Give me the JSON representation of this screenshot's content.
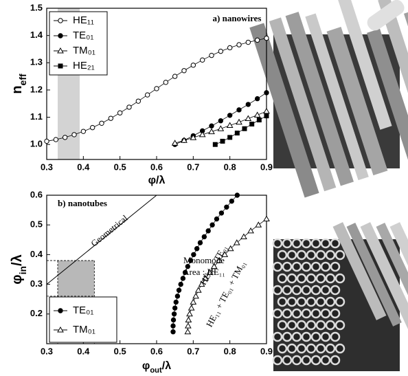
{
  "chart_data": [
    {
      "type": "line",
      "x_label": [
        {
          "text": "φ/λ"
        }
      ],
      "y_label": [
        {
          "text": "n"
        },
        {
          "text": "eff",
          "sub": true
        }
      ],
      "xlim": [
        0.3,
        0.9
      ],
      "xticks": [
        0.3,
        0.4,
        0.5,
        0.6,
        0.7,
        0.8,
        0.9
      ],
      "ylim": [
        0.945,
        1.5
      ],
      "yticks": [
        {
          "value": 1.0,
          "label": "1.0"
        },
        1.1,
        1.2,
        1.3,
        1.4,
        1.5
      ],
      "band": {
        "x": [
          0.33,
          0.39
        ],
        "color": "#d3d3d3"
      },
      "annotations": [
        "a) nanowires"
      ],
      "legend": "top-left",
      "series": [
        {
          "name": "HE₁₁",
          "color": "#000000",
          "marker": "circle-open",
          "x": [
            0.3,
            0.325,
            0.35,
            0.375,
            0.4,
            0.425,
            0.45,
            0.475,
            0.5,
            0.525,
            0.55,
            0.575,
            0.6,
            0.625,
            0.65,
            0.675,
            0.7,
            0.725,
            0.75,
            0.775,
            0.8,
            0.825,
            0.85,
            0.875,
            0.9
          ],
          "values": [
            1.012,
            1.018,
            1.026,
            1.036,
            1.048,
            1.062,
            1.078,
            1.096,
            1.116,
            1.137,
            1.159,
            1.182,
            1.205,
            1.228,
            1.25,
            1.271,
            1.291,
            1.31,
            1.327,
            1.342,
            1.355,
            1.366,
            1.375,
            1.383,
            1.39
          ]
        },
        {
          "name": "TE₀₁",
          "color": "#000000",
          "marker": "circle-filled",
          "x": [
            0.65,
            0.675,
            0.7,
            0.725,
            0.75,
            0.775,
            0.8,
            0.825,
            0.85,
            0.875,
            0.9
          ],
          "values": [
            1.0,
            1.015,
            1.032,
            1.05,
            1.068,
            1.087,
            1.107,
            1.127,
            1.147,
            1.168,
            1.19
          ]
        },
        {
          "name": "TM₀₁",
          "color": "#000000",
          "marker": "triangle-open",
          "x": [
            0.65,
            0.675,
            0.7,
            0.725,
            0.75,
            0.775,
            0.8,
            0.825,
            0.85,
            0.875,
            0.9
          ],
          "values": [
            1.005,
            1.015,
            1.025,
            1.036,
            1.047,
            1.058,
            1.07,
            1.082,
            1.095,
            1.108,
            1.122
          ]
        },
        {
          "name": "HE₂₁",
          "color": "#000000",
          "marker": "square-filled",
          "x": [
            0.76,
            0.78,
            0.8,
            0.82,
            0.84,
            0.86,
            0.88,
            0.9
          ],
          "values": [
            1.0,
            1.012,
            1.026,
            1.042,
            1.058,
            1.075,
            1.09,
            1.105
          ]
        }
      ]
    },
    {
      "type": "line",
      "x_label": [
        {
          "text": "φ"
        },
        {
          "text": "out",
          "sub": true
        },
        {
          "text": "/λ"
        }
      ],
      "y_label": [
        {
          "text": "φ"
        },
        {
          "text": "in",
          "sub": true
        },
        {
          "text": "/λ"
        }
      ],
      "xlim": [
        0.3,
        0.9
      ],
      "xticks": [
        0.3,
        0.4,
        0.5,
        0.6,
        0.7,
        0.8,
        0.9
      ],
      "ylim": [
        0.1,
        0.6
      ],
      "yticks": [
        0.2,
        0.3,
        0.4,
        0.5,
        0.6
      ],
      "region": {
        "x": [
          0.33,
          0.43
        ],
        "y": [
          0.26,
          0.38
        ],
        "color": "#b8b8b8"
      },
      "diagonal": {
        "x": [
          0.3,
          0.6
        ],
        "y": [
          0.3,
          0.6
        ],
        "label": "Geometrical"
      },
      "annotations": [
        "b) nanotubes",
        "Monomode",
        "Area : HE₁₁",
        "HE₁₁ + TE₀₁",
        "HE₁₁ + TE₀₁ + TM₀₁"
      ],
      "legend": "bottom-left",
      "series": [
        {
          "name": "TE₀₁",
          "color": "#000000",
          "marker": "circle-filled",
          "x": [
            0.645,
            0.645,
            0.646,
            0.648,
            0.65,
            0.653,
            0.657,
            0.661,
            0.666,
            0.672,
            0.678,
            0.685,
            0.693,
            0.701,
            0.71,
            0.719,
            0.73,
            0.741,
            0.752,
            0.764,
            0.777,
            0.791,
            0.805,
            0.82
          ],
          "values": [
            0.14,
            0.16,
            0.18,
            0.2,
            0.22,
            0.24,
            0.26,
            0.28,
            0.3,
            0.32,
            0.34,
            0.36,
            0.38,
            0.4,
            0.42,
            0.44,
            0.46,
            0.48,
            0.5,
            0.52,
            0.54,
            0.56,
            0.58,
            0.6
          ]
        },
        {
          "name": "TM₀₁",
          "color": "#000000",
          "marker": "triangle-open",
          "x": [
            0.685,
            0.686,
            0.687,
            0.69,
            0.695,
            0.7,
            0.707,
            0.714,
            0.723,
            0.733,
            0.745,
            0.757,
            0.771,
            0.786,
            0.802,
            0.819,
            0.838,
            0.857,
            0.878,
            0.9
          ],
          "values": [
            0.14,
            0.16,
            0.18,
            0.2,
            0.22,
            0.24,
            0.26,
            0.28,
            0.3,
            0.32,
            0.34,
            0.36,
            0.38,
            0.4,
            0.42,
            0.44,
            0.46,
            0.48,
            0.5,
            0.52
          ]
        }
      ]
    }
  ]
}
